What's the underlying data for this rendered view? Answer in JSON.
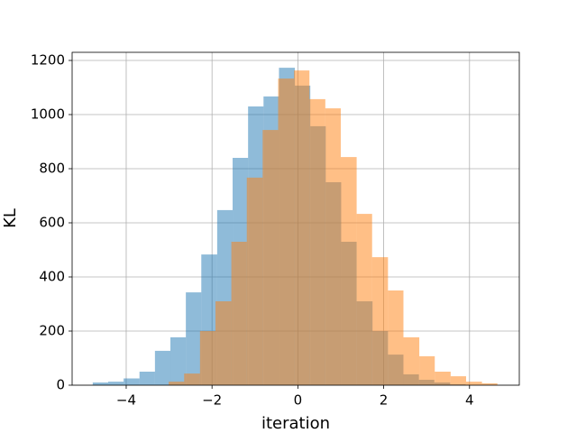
{
  "chart_data": {
    "type": "histogram",
    "xlabel": "iteration",
    "ylabel": "KL",
    "series": [
      {
        "color": "#1f77b4",
        "alpha": 0.5,
        "bins": [
          -4.78,
          -4.42,
          -4.06,
          -3.69,
          -3.33,
          -2.97,
          -2.61,
          -2.25,
          -1.88,
          -1.52,
          -1.16,
          -0.8,
          -0.44,
          -0.07,
          0.29,
          0.65,
          1.01,
          1.37,
          1.74,
          2.1,
          2.46,
          2.82,
          3.18,
          3.55,
          3.91
        ],
        "values": [
          10,
          13,
          25,
          50,
          127,
          177,
          343,
          483,
          647,
          840,
          1030,
          1067,
          1173,
          1107,
          957,
          750,
          530,
          310,
          200,
          113,
          40,
          20,
          10,
          3
        ]
      },
      {
        "color": "#ff7f0e",
        "alpha": 0.5,
        "bins": [
          -3.01,
          -2.65,
          -2.28,
          -1.92,
          -1.55,
          -1.19,
          -0.82,
          -0.46,
          -0.09,
          0.27,
          0.64,
          1.0,
          1.37,
          1.73,
          2.1,
          2.46,
          2.83,
          3.19,
          3.56,
          3.92,
          4.29,
          4.65
        ],
        "values": [
          13,
          43,
          200,
          310,
          530,
          767,
          943,
          1133,
          1163,
          1057,
          1023,
          843,
          633,
          473,
          350,
          177,
          107,
          50,
          33,
          13,
          7
        ]
      }
    ],
    "xlim": [
      -5.26,
      5.16
    ],
    "xticks": [
      {
        "value": -4,
        "label": "−4"
      },
      {
        "value": -2,
        "label": "−2"
      },
      0,
      2,
      4
    ],
    "ylim": [
      0,
      1230
    ],
    "yticks": [
      0,
      200,
      400,
      600,
      800,
      1000,
      1200
    ],
    "grid": true
  }
}
